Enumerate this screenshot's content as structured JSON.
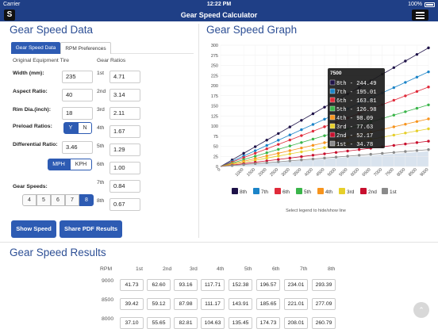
{
  "status": {
    "carrier": "Carrier",
    "time": "12:22 PM",
    "battery": "100%"
  },
  "nav": {
    "logo": "S",
    "title": "Gear Speed Calculator"
  },
  "data_section": {
    "title": "Gear Speed Data",
    "tabs": [
      "Gear Speed Data",
      "RPM Preferences"
    ],
    "tire_header": "Original Equipment Tire",
    "ratios_header": "Gear Ratios",
    "width_label": "Width (mm):",
    "width_value": "235",
    "aspect_label": "Aspect Ratio:",
    "aspect_value": "40",
    "rim_label": "Rim Dia.(inch):",
    "rim_value": "18",
    "preload_label": "Preload Ratios:",
    "preload_options": [
      "Y",
      "N"
    ],
    "diff_label": "Differential Ratio:",
    "diff_value": "3.46",
    "units": [
      "MPH",
      "KPH"
    ],
    "gear_speeds_label": "Gear Speeds:",
    "gear_speeds": [
      "4",
      "5",
      "6",
      "7",
      "8"
    ],
    "gears": [
      {
        "label": "1st",
        "value": "4.71"
      },
      {
        "label": "2nd",
        "value": "3.14"
      },
      {
        "label": "3rd",
        "value": "2.11"
      },
      {
        "label": "4th",
        "value": "1.67"
      },
      {
        "label": "5th",
        "value": "1.29"
      },
      {
        "label": "6th",
        "value": "1.00"
      },
      {
        "label": "7th",
        "value": "0.84"
      },
      {
        "label": "8th",
        "value": "0.67"
      }
    ],
    "show_speed_btn": "Show Speed",
    "share_pdf_btn": "Share PDF Results"
  },
  "graph_section": {
    "title": "Gear Speed Graph",
    "legend_hint": "Select legend to hide/show line",
    "tooltip_title": "7500"
  },
  "chart_data": {
    "type": "line",
    "x": [
      0,
      500,
      1000,
      1500,
      2000,
      2500,
      3000,
      3500,
      4000,
      4500,
      5000,
      5500,
      6000,
      6500,
      7000,
      7500,
      8000,
      8500,
      9000
    ],
    "xticks": [
      "0",
      "1000",
      "1500",
      "2000",
      "2500",
      "3000",
      "3500",
      "4000",
      "4500",
      "5000",
      "5500",
      "6000",
      "6500",
      "7000",
      "7500",
      "8000",
      "8500",
      "9000"
    ],
    "ylim": [
      0,
      300
    ],
    "yticks": [
      0,
      25,
      50,
      75,
      100,
      125,
      150,
      175,
      200,
      225,
      250,
      275,
      300
    ],
    "series": [
      {
        "name": "8th",
        "color": "#1e1248",
        "at9000": 293.39
      },
      {
        "name": "7th",
        "color": "#1b84c8",
        "at9000": 234.01
      },
      {
        "name": "6th",
        "color": "#e02a3a",
        "at9000": 196.57
      },
      {
        "name": "5th",
        "color": "#3ab54a",
        "at9000": 152.38
      },
      {
        "name": "4th",
        "color": "#f7941d",
        "at9000": 117.71
      },
      {
        "name": "3rd",
        "color": "#e6cf2a",
        "at9000": 93.16
      },
      {
        "name": "2nd",
        "color": "#c8102e",
        "at9000": 62.6
      },
      {
        "name": "1st",
        "color": "#8a8a8a",
        "at9000": 41.73
      }
    ],
    "tooltip": [
      {
        "name": "8th",
        "value": "244.49"
      },
      {
        "name": "7th",
        "value": "195.01"
      },
      {
        "name": "6th",
        "value": "163.81"
      },
      {
        "name": "5th",
        "value": "126.98"
      },
      {
        "name": "4th",
        "value": "98.09"
      },
      {
        "name": "3rd",
        "value": "77.63"
      },
      {
        "name": "2nd",
        "value": "52.17"
      },
      {
        "name": "1st",
        "value": "34.78"
      }
    ]
  },
  "results": {
    "title": "Gear Speed Results",
    "headers": [
      "RPM",
      "1st",
      "2nd",
      "3rd",
      "4th",
      "5th",
      "6th",
      "7th",
      "8th"
    ],
    "rows": [
      {
        "rpm": "9000",
        "values": [
          "41.73",
          "62.60",
          "93.16",
          "117.71",
          "152.38",
          "196.57",
          "234.01",
          "293.39"
        ]
      },
      {
        "rpm": "8500",
        "values": [
          "39.42",
          "59.12",
          "87.98",
          "111.17",
          "143.91",
          "185.65",
          "221.01",
          "277.09"
        ]
      },
      {
        "rpm": "8000",
        "values": [
          "37.10",
          "55.65",
          "82.81",
          "104.63",
          "135.45",
          "174.73",
          "208.01",
          "260.79"
        ]
      }
    ]
  }
}
